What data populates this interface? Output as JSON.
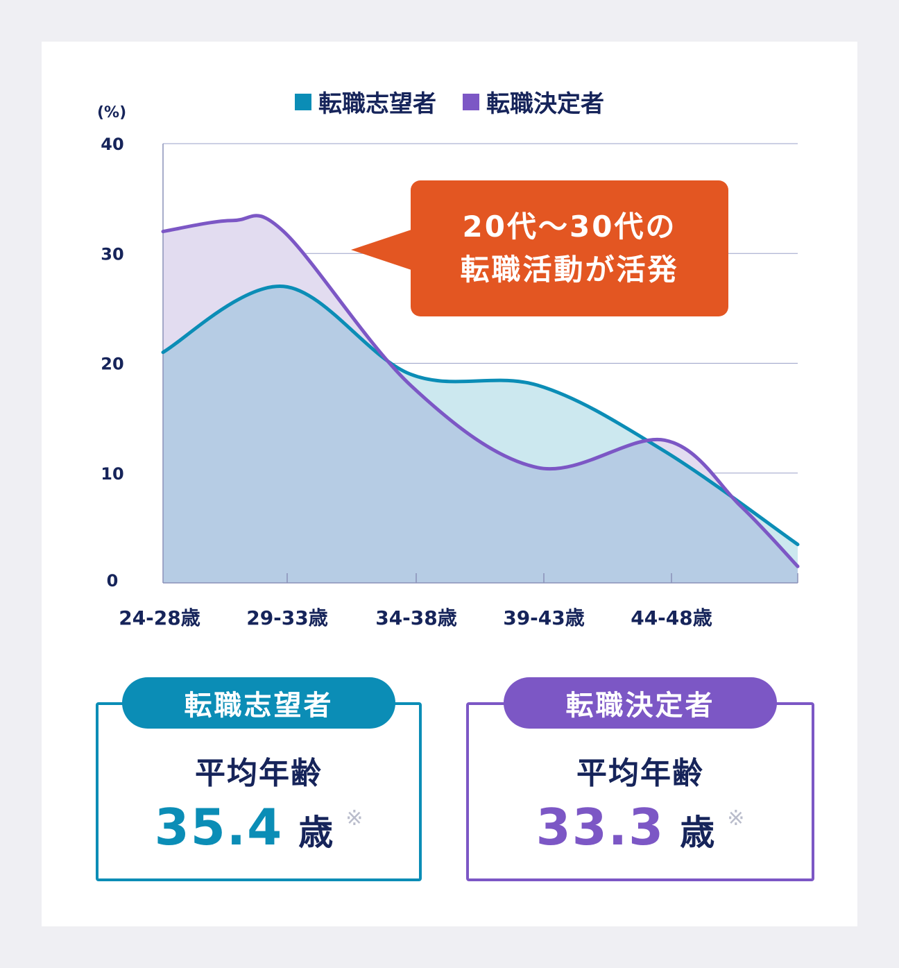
{
  "chart_data": {
    "type": "area",
    "unit_label": "(%)",
    "categories": [
      "24-28歳",
      "29-33歳",
      "34-38歳",
      "39-43歳",
      "44-48歳"
    ],
    "ylim": [
      0,
      40
    ],
    "yticks": [
      0,
      10,
      20,
      30,
      40
    ],
    "grid": true,
    "legend_position": "top-center",
    "series": [
      {
        "name": "転職志望者",
        "color": "#0b8db6",
        "fill": "#cce8ef",
        "x": [
          0,
          0.95,
          1.95,
          2.95,
          3.95,
          5
        ],
        "values": [
          21,
          27,
          19,
          18,
          12,
          3.5
        ]
      },
      {
        "name": "転職決定者",
        "color": "#7c57c5",
        "fill": "#e2dcf0",
        "x": [
          0,
          0.55,
          0.95,
          1.95,
          2.95,
          3.95,
          4.55,
          5
        ],
        "values": [
          32,
          33,
          32,
          18,
          10.5,
          13,
          7,
          1.5
        ]
      }
    ],
    "overlap_fill": "#b6cce4",
    "annotation": {
      "line1": "20代〜30代の",
      "line2": "転職活動が活発",
      "color": "#e35622"
    }
  },
  "stats": [
    {
      "label": "転職志望者",
      "title": "平均年齢",
      "value": "35.4",
      "unit": "歳",
      "note": "※",
      "color": "#0b8db6"
    },
    {
      "label": "転職決定者",
      "title": "平均年齢",
      "value": "33.3",
      "unit": "歳",
      "note": "※",
      "color": "#7c57c5"
    }
  ]
}
